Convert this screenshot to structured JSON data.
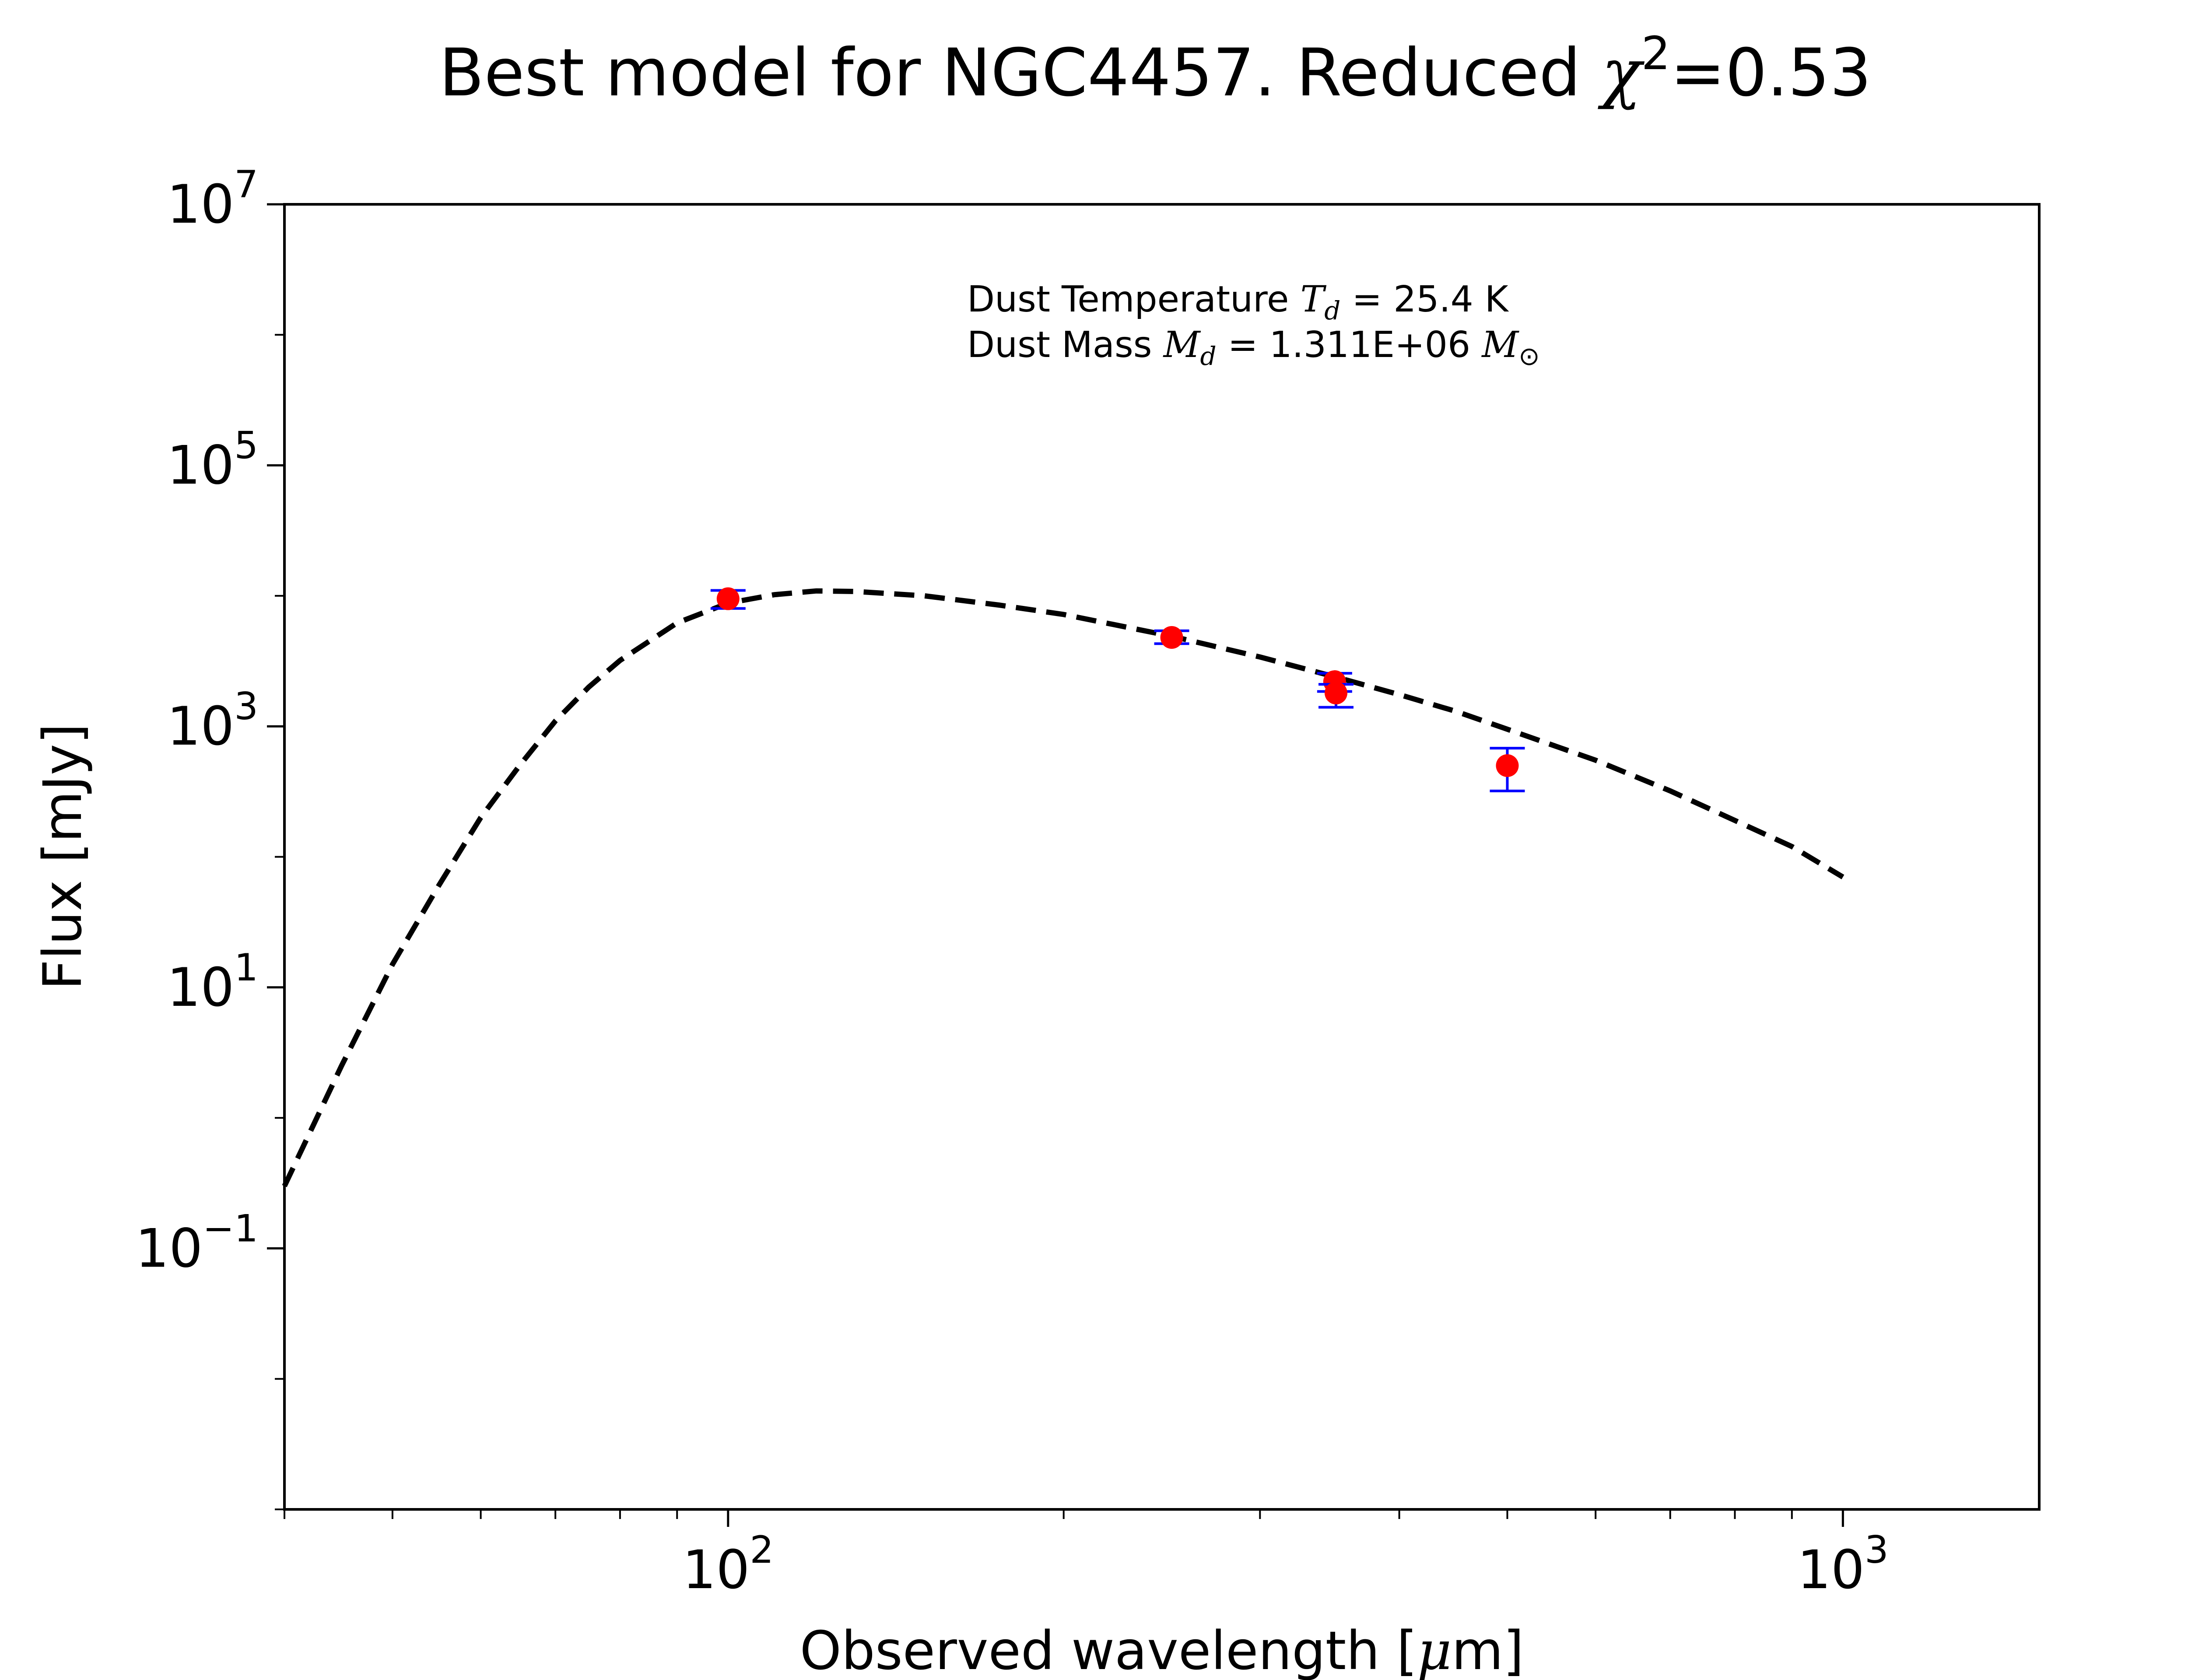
{
  "chart_data": {
    "type": "scatter",
    "title": {
      "prefix": "Best model for NGC4457. Reduced ",
      "symbol": "χ",
      "exponent": "2",
      "suffix": "=0.53"
    },
    "xlabel": {
      "prefix": "Observed wavelength [",
      "mu": "μ",
      "suffix": "m]"
    },
    "ylabel": "Flux [mJy]",
    "x_scale": "log",
    "y_scale": "log",
    "xlim": [
      40,
      1500
    ],
    "ylim": [
      0.001,
      10000000
    ],
    "x_ticks": [
      {
        "value": 100,
        "base": "10",
        "exp": "2"
      },
      {
        "value": 1000,
        "base": "10",
        "exp": "3"
      }
    ],
    "y_ticks": [
      {
        "value": 10000000,
        "base": "10",
        "exp": "7"
      },
      {
        "value": 100000,
        "base": "10",
        "exp": "5"
      },
      {
        "value": 1000,
        "base": "10",
        "exp": "3"
      },
      {
        "value": 10,
        "base": "10",
        "exp": "1"
      },
      {
        "value": 0.1,
        "base": "10",
        "exp": "−1"
      }
    ],
    "annotation": {
      "line1": {
        "text": "Dust Temperature ",
        "sym": "T",
        "sub": "d",
        "value": " = 25.4 K"
      },
      "line2": {
        "text": "Dust Mass ",
        "sym": "M",
        "sub": "d",
        "value": " = 1.311E+06 ",
        "unit": "M",
        "unit_sub": "⊙"
      }
    },
    "model_curve": {
      "style": "dashed",
      "color": "#000000",
      "x": [
        40,
        45,
        50,
        55,
        60,
        65,
        70,
        75,
        80,
        90,
        100,
        110,
        120,
        130,
        150,
        175,
        200,
        250,
        300,
        350,
        400,
        450,
        500,
        600,
        700,
        800,
        900,
        1000
      ],
      "y": [
        0.3,
        2.5,
        15,
        60,
        200,
        500,
        1100,
        2000,
        3200,
        6200,
        8800,
        10200,
        10900,
        10800,
        10000,
        8500,
        7200,
        4900,
        3400,
        2400,
        1750,
        1300,
        950,
        550,
        320,
        190,
        120,
        70
      ]
    },
    "observations": {
      "marker_color": "#ff0000",
      "errorbar_color": "#0000ff",
      "points": [
        {
          "x": 100,
          "y": 9500,
          "yerr_low": 8000,
          "yerr_high": 11000
        },
        {
          "x": 250,
          "y": 4800,
          "yerr_low": 4300,
          "yerr_high": 5400
        },
        {
          "x": 350,
          "y": 2200,
          "yerr_low": 1850,
          "yerr_high": 2550
        },
        {
          "x": 351,
          "y": 1800,
          "yerr_low": 1400,
          "yerr_high": 2100
        },
        {
          "x": 500,
          "y": 500,
          "yerr_low": 320,
          "yerr_high": 680
        }
      ]
    }
  }
}
